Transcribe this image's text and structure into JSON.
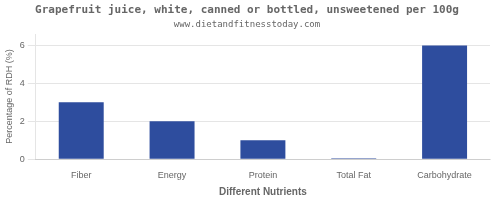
{
  "chart_data": {
    "type": "bar",
    "title": "Grapefruit juice, white, canned or bottled, unsweetened per 100g",
    "subtitle": "www.dietandfitnesstoday.com",
    "categories": [
      "Fiber",
      "Energy",
      "Protein",
      "Total Fat",
      "Carbohydrate"
    ],
    "values": [
      3.0,
      2.0,
      1.0,
      0.05,
      6.0
    ],
    "color": "#2e4d9e",
    "xlabel": "Different Nutrients",
    "ylabel": "Percentage of RDH (%)",
    "ylim": [
      0,
      6.6
    ],
    "yticks": [
      0,
      2,
      4,
      6
    ],
    "grid": true
  }
}
